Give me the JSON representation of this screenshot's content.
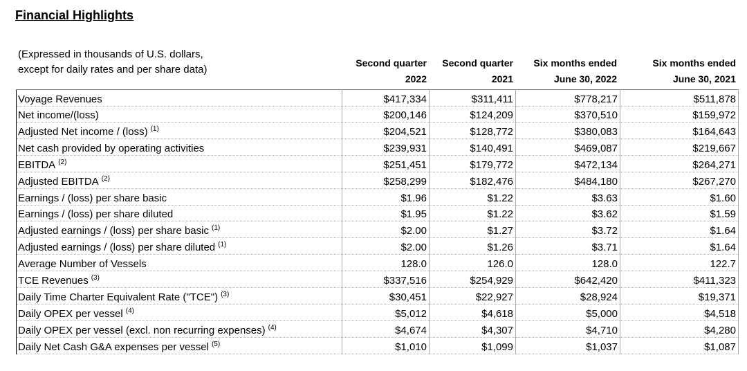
{
  "title": "Financial Highlights",
  "note": [
    "(Expressed in thousands of U.S. dollars,",
    "except for daily rates and per share data)"
  ],
  "columns": [
    {
      "line1": "Second quarter",
      "line2": "2022"
    },
    {
      "line1": "Second quarter",
      "line2": "2021"
    },
    {
      "line1": "Six months ended",
      "line2": "June 30, 2022"
    },
    {
      "line1": "Six months ended",
      "line2": "June 30, 2021"
    }
  ],
  "rows": [
    {
      "label": "Voyage Revenues",
      "sup": "",
      "values": [
        "$417,334",
        "$311,411",
        "$778,217",
        "$511,878"
      ]
    },
    {
      "label": "Net income/(loss)",
      "sup": "",
      "values": [
        "$200,146",
        "$124,209",
        "$370,510",
        "$159,972"
      ]
    },
    {
      "label": "Adjusted Net income / (loss)",
      "sup": "(1)",
      "values": [
        "$204,521",
        "$128,772",
        "$380,083",
        "$164,643"
      ]
    },
    {
      "label": "Net cash provided by operating activities",
      "sup": "",
      "values": [
        "$239,931",
        "$140,491",
        "$469,087",
        "$219,667"
      ]
    },
    {
      "label": "EBITDA",
      "sup": "(2)",
      "values": [
        "$251,451",
        "$179,772",
        "$472,134",
        "$264,271"
      ]
    },
    {
      "label": "Adjusted EBITDA",
      "sup": "(2)",
      "values": [
        "$258,299",
        "$182,476",
        "$484,180",
        "$267,270"
      ]
    },
    {
      "label": "Earnings / (loss) per share basic",
      "sup": "",
      "values": [
        "$1.96",
        "$1.22",
        "$3.63",
        "$1.60"
      ]
    },
    {
      "label": "Earnings / (loss) per share diluted",
      "sup": "",
      "values": [
        "$1.95",
        "$1.22",
        "$3.62",
        "$1.59"
      ]
    },
    {
      "label": "Adjusted earnings / (loss) per share basic",
      "sup": "(1)",
      "values": [
        "$2.00",
        "$1.27",
        "$3.72",
        "$1.64"
      ]
    },
    {
      "label": "Adjusted earnings / (loss) per share diluted",
      "sup": "(1)",
      "values": [
        "$2.00",
        "$1.26",
        "$3.71",
        "$1.64"
      ]
    },
    {
      "label": "Average Number of Vessels",
      "sup": "",
      "values": [
        "128.0",
        "126.0",
        "128.0",
        "122.7"
      ]
    },
    {
      "label": "TCE Revenues",
      "sup": "(3)",
      "values": [
        "$337,516",
        "$254,929",
        "$642,420",
        "$411,323"
      ]
    },
    {
      "label": "Daily Time Charter Equivalent Rate (\"TCE\")",
      "sup": "(3)",
      "values": [
        "$30,451",
        "$22,927",
        "$28,924",
        "$19,371"
      ]
    },
    {
      "label": "Daily OPEX per vessel",
      "sup": "(4)",
      "values": [
        "$5,012",
        "$4,618",
        "$5,000",
        "$4,518"
      ]
    },
    {
      "label": "Daily OPEX per vessel (excl. non recurring expenses)",
      "sup": "(4)",
      "values": [
        "$4,674",
        "$4,307",
        "$4,710",
        "$4,280"
      ]
    },
    {
      "label": "Daily Net Cash G&A expenses per vessel",
      "sup": "(5)",
      "values": [
        "$1,010",
        "$1,099",
        "$1,037",
        "$1,087"
      ]
    }
  ]
}
